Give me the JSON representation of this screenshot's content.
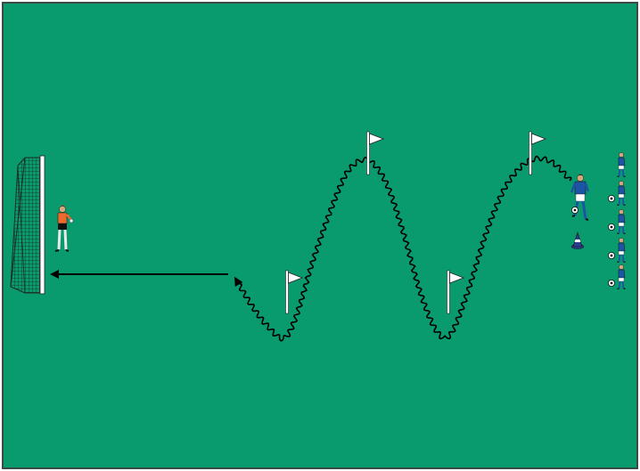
{
  "diagram": {
    "type": "soccer-drill",
    "colors": {
      "pitch": "#099a6e",
      "border": "#3a4a46",
      "path": "#000000",
      "flag": "#ffffff",
      "goal_net": "#1a2a22",
      "attacker_shirt": "#1d55a6",
      "goalkeeper_shirt": "#ef6b2d",
      "cone": "#2e3f8f"
    },
    "icons": [
      "goal-net-icon",
      "goalkeeper-icon",
      "flag-icon",
      "player-icon",
      "cone-icon",
      "ball-icon",
      "arrow-head-icon"
    ],
    "flags": 4,
    "queued_players": 5
  }
}
